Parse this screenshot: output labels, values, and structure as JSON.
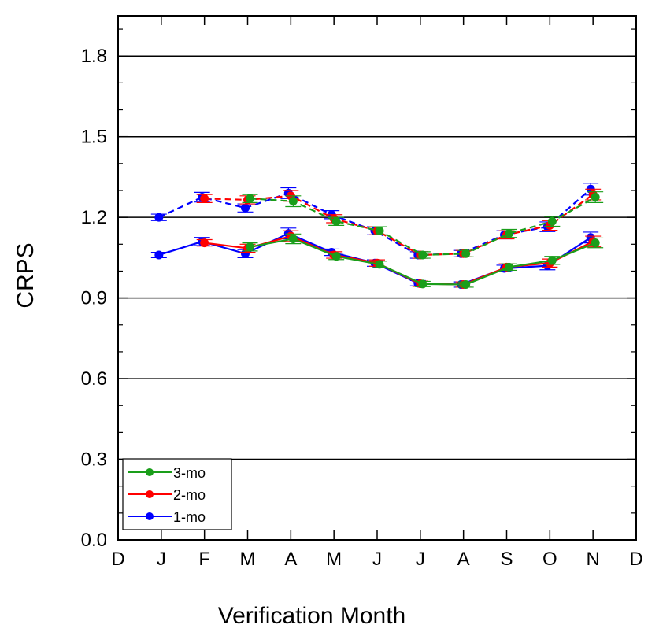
{
  "chart_data": {
    "type": "line",
    "title": "",
    "xlabel": "Verification Month",
    "ylabel": "CRPS",
    "categories": [
      "D",
      "J",
      "F",
      "M",
      "A",
      "M",
      "J",
      "J",
      "A",
      "S",
      "O",
      "N",
      "D"
    ],
    "ylim": [
      0.0,
      1.95
    ],
    "yticks": [
      0.0,
      0.3,
      0.6,
      0.9,
      1.2,
      1.5,
      1.8
    ],
    "ytick_labels": [
      "0.0",
      "0.3",
      "0.6",
      "0.9",
      "1.2",
      "1.5",
      "1.8"
    ],
    "grid": "horizontal at major ticks",
    "legend_position": "bottom-left",
    "legend": [
      {
        "label": "3-mo",
        "color": "#1a9e1a"
      },
      {
        "label": "2-mo",
        "color": "#ff0000"
      },
      {
        "label": "1-mo",
        "color": "#0000ff"
      }
    ],
    "series": [
      {
        "name": "1-mo",
        "group": "solid",
        "color": "#0000ff",
        "dash": false,
        "values": [
          null,
          1.06,
          1.11,
          1.065,
          1.14,
          1.07,
          1.03,
          0.955,
          0.95,
          1.01,
          1.02,
          1.125,
          null
        ],
        "err": [
          null,
          0.01,
          0.015,
          0.015,
          0.02,
          0.012,
          0.012,
          0.01,
          0.01,
          0.012,
          0.015,
          0.02,
          null
        ]
      },
      {
        "name": "2-mo",
        "group": "solid",
        "color": "#ff0000",
        "dash": false,
        "values": [
          null,
          null,
          1.105,
          1.085,
          1.13,
          1.06,
          1.03,
          0.953,
          0.95,
          1.015,
          1.03,
          1.11,
          null
        ],
        "err": [
          null,
          null,
          0.012,
          0.015,
          0.02,
          0.012,
          0.012,
          0.01,
          0.01,
          0.012,
          0.015,
          0.02,
          null
        ]
      },
      {
        "name": "3-mo",
        "group": "solid",
        "color": "#1a9e1a",
        "dash": false,
        "values": [
          null,
          null,
          null,
          1.09,
          1.12,
          1.055,
          1.025,
          0.952,
          0.95,
          1.015,
          1.04,
          1.105,
          null
        ],
        "err": [
          null,
          null,
          null,
          0.015,
          0.018,
          0.012,
          0.012,
          0.01,
          0.01,
          0.012,
          0.015,
          0.018,
          null
        ]
      },
      {
        "name": "1-mo",
        "group": "dashed",
        "color": "#0000ff",
        "dash": true,
        "values": [
          null,
          1.2,
          1.275,
          1.235,
          1.29,
          1.21,
          1.15,
          1.06,
          1.065,
          1.135,
          1.165,
          1.305,
          null
        ],
        "err": [
          null,
          0.012,
          0.018,
          0.015,
          0.02,
          0.015,
          0.015,
          0.012,
          0.012,
          0.015,
          0.018,
          0.022,
          null
        ]
      },
      {
        "name": "2-mo",
        "group": "dashed",
        "color": "#ff0000",
        "dash": true,
        "values": [
          null,
          null,
          1.27,
          1.265,
          1.28,
          1.195,
          1.15,
          1.06,
          1.065,
          1.135,
          1.17,
          1.285,
          null
        ],
        "err": [
          null,
          null,
          0.015,
          0.015,
          0.02,
          0.015,
          0.015,
          0.012,
          0.012,
          0.015,
          0.018,
          0.02,
          null
        ]
      },
      {
        "name": "3-mo",
        "group": "dashed",
        "color": "#1a9e1a",
        "dash": true,
        "values": [
          null,
          null,
          null,
          1.27,
          1.26,
          1.185,
          1.15,
          1.06,
          1.065,
          1.14,
          1.185,
          1.275,
          null
        ],
        "err": [
          null,
          null,
          null,
          0.015,
          0.02,
          0.015,
          0.015,
          0.012,
          0.012,
          0.015,
          0.018,
          0.02,
          null
        ]
      }
    ]
  }
}
